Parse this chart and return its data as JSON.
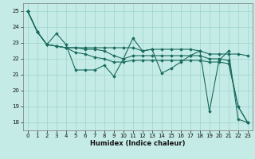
{
  "xlabel": "Humidex (Indice chaleur)",
  "bg_color": "#c5ebe6",
  "line_color": "#1a6b5e",
  "grid_color": "#9ed4cd",
  "xlim": [
    -0.5,
    23.5
  ],
  "ylim": [
    17.5,
    25.5
  ],
  "yticks": [
    18,
    19,
    20,
    21,
    22,
    23,
    24,
    25
  ],
  "xticks": [
    0,
    1,
    2,
    3,
    4,
    5,
    6,
    7,
    8,
    9,
    10,
    11,
    12,
    13,
    14,
    15,
    16,
    17,
    18,
    19,
    20,
    21,
    22,
    23
  ],
  "series": [
    [
      25.0,
      23.7,
      22.9,
      23.6,
      22.9,
      21.3,
      21.3,
      21.3,
      21.6,
      20.9,
      22.0,
      23.3,
      22.5,
      22.6,
      21.1,
      21.4,
      21.8,
      22.2,
      22.5,
      18.7,
      21.9,
      22.5,
      18.2,
      18.0
    ],
    [
      25.0,
      23.7,
      22.9,
      22.8,
      22.7,
      22.7,
      22.7,
      22.7,
      22.7,
      22.7,
      22.7,
      22.7,
      22.5,
      22.6,
      22.6,
      22.6,
      22.6,
      22.6,
      22.5,
      22.3,
      22.3,
      22.3,
      22.3,
      22.2
    ],
    [
      25.0,
      23.7,
      22.9,
      22.8,
      22.7,
      22.7,
      22.6,
      22.6,
      22.5,
      22.2,
      22.0,
      22.2,
      22.2,
      22.2,
      22.2,
      22.2,
      22.2,
      22.2,
      22.2,
      22.0,
      22.0,
      21.9,
      19.0,
      18.0
    ],
    [
      25.0,
      23.7,
      22.9,
      22.8,
      22.7,
      22.4,
      22.3,
      22.1,
      22.0,
      21.8,
      21.8,
      21.9,
      21.9,
      21.9,
      21.9,
      21.9,
      21.9,
      21.9,
      21.9,
      21.8,
      21.8,
      21.7,
      19.0,
      18.0
    ]
  ]
}
